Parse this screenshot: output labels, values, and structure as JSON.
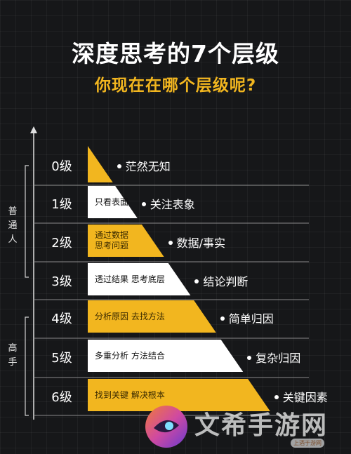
{
  "header": {
    "title": "深度思考的7个层级",
    "subtitle": "你现在在哪个层级呢?"
  },
  "colors": {
    "accent_yellow": "#F2B61F",
    "block_white": "#FFFFFF",
    "background": "#161719"
  },
  "groups": {
    "ordinary": "普通人",
    "expert": "高手"
  },
  "levels": [
    {
      "level": "0级",
      "box_text": "",
      "result": "茫然无知",
      "fill": "yellow"
    },
    {
      "level": "1级",
      "box_text": "只看表面",
      "result": "关注表象",
      "fill": "white"
    },
    {
      "level": "2级",
      "box_text": "通过数据\n思考问题",
      "result": "数据/事实",
      "fill": "yellow"
    },
    {
      "level": "3级",
      "box_text": "透过结果 思考底层",
      "result": "结论判断",
      "fill": "white"
    },
    {
      "level": "4级",
      "box_text": "分析原因 去找方法",
      "result": "简单归因",
      "fill": "yellow"
    },
    {
      "level": "5级",
      "box_text": "多重分析 方法结合",
      "result": "复杂归因",
      "fill": "white"
    },
    {
      "level": "6级",
      "box_text": "找到关键 解决根本",
      "result": "关键因素",
      "fill": "yellow"
    }
  ],
  "watermark": {
    "text": "文希手游网",
    "badge": "上酒于游网",
    "icon": "game-logo-icon"
  }
}
